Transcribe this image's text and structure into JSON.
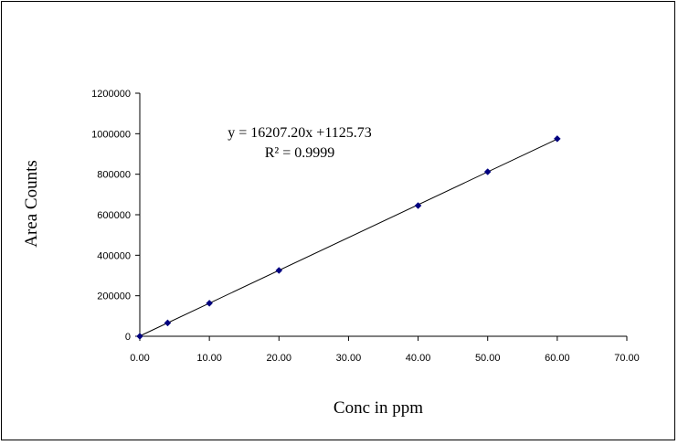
{
  "chart_data": {
    "type": "scatter",
    "title": "",
    "xlabel": "Conc in ppm",
    "ylabel": "Area Counts",
    "xlim": [
      0,
      70
    ],
    "ylim": [
      0,
      1200000
    ],
    "x_ticks": [
      "0.00",
      "10.00",
      "20.00",
      "30.00",
      "40.00",
      "50.00",
      "60.00",
      "70.00"
    ],
    "y_ticks": [
      "0",
      "200000",
      "400000",
      "600000",
      "800000",
      "1000000",
      "1200000"
    ],
    "series": [
      {
        "x": [
          0,
          4,
          10,
          20,
          40,
          50,
          60
        ],
        "y": [
          0,
          66000,
          163000,
          325000,
          645000,
          812000,
          975000
        ],
        "marker": "diamond",
        "color": "#000080"
      }
    ],
    "trendline": {
      "slope": 16207.2,
      "intercept": 1125.73,
      "x_range": [
        0,
        60
      ],
      "color": "#000000"
    },
    "annotations": {
      "equation": "y = 16207.20x +1125.73",
      "r_squared": "R² = 0.9999"
    },
    "grid": false,
    "legend": "none"
  }
}
